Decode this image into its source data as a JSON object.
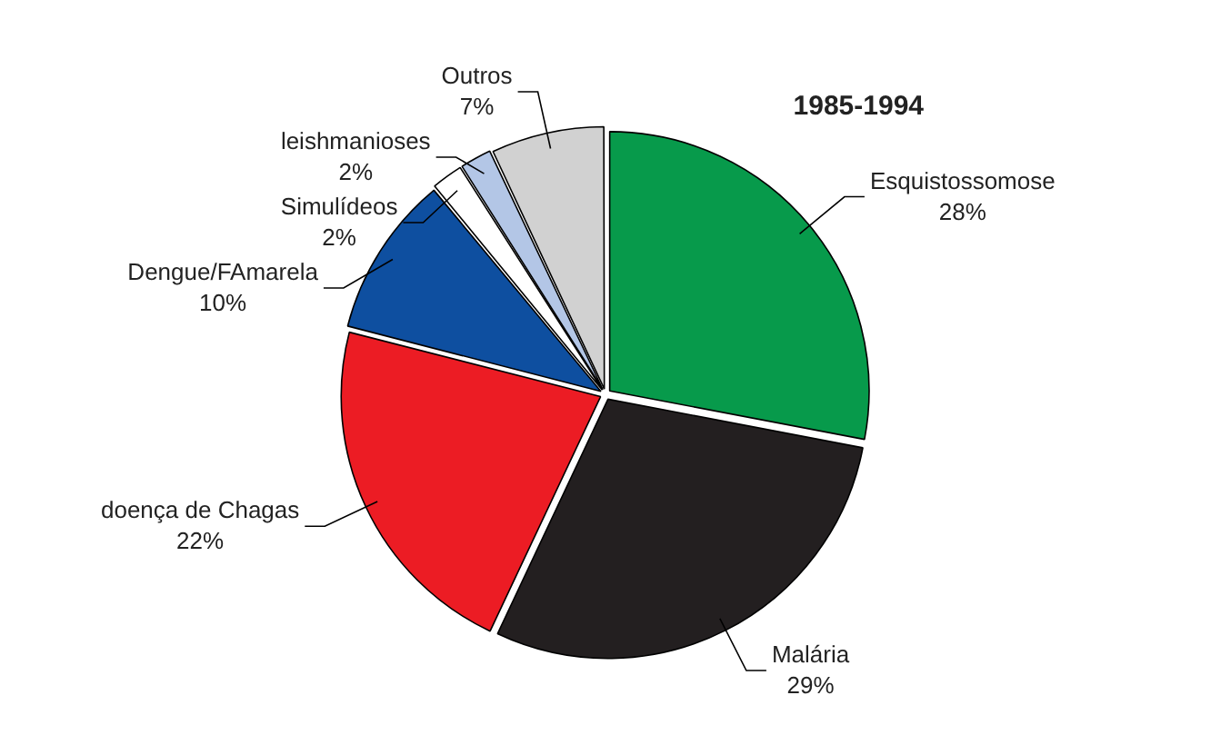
{
  "chart_data": {
    "type": "pie",
    "title": "1985-1994",
    "categories": [
      "Esquistossomose",
      "Malária",
      "doença de Chagas",
      "Dengue/FAmarela",
      "Simulídeos",
      "leishmanioses",
      "Outros"
    ],
    "values": [
      28,
      29,
      22,
      10,
      2,
      2,
      7
    ],
    "value_labels": [
      "28%",
      "29%",
      "22%",
      "10%",
      "2%",
      "2%",
      "7%"
    ],
    "colors": [
      "#079a4b",
      "#231f20",
      "#ec1c24",
      "#0e4fa0",
      "#ffffff",
      "#b3c6e6",
      "#d1d1d1"
    ],
    "legend": false
  }
}
